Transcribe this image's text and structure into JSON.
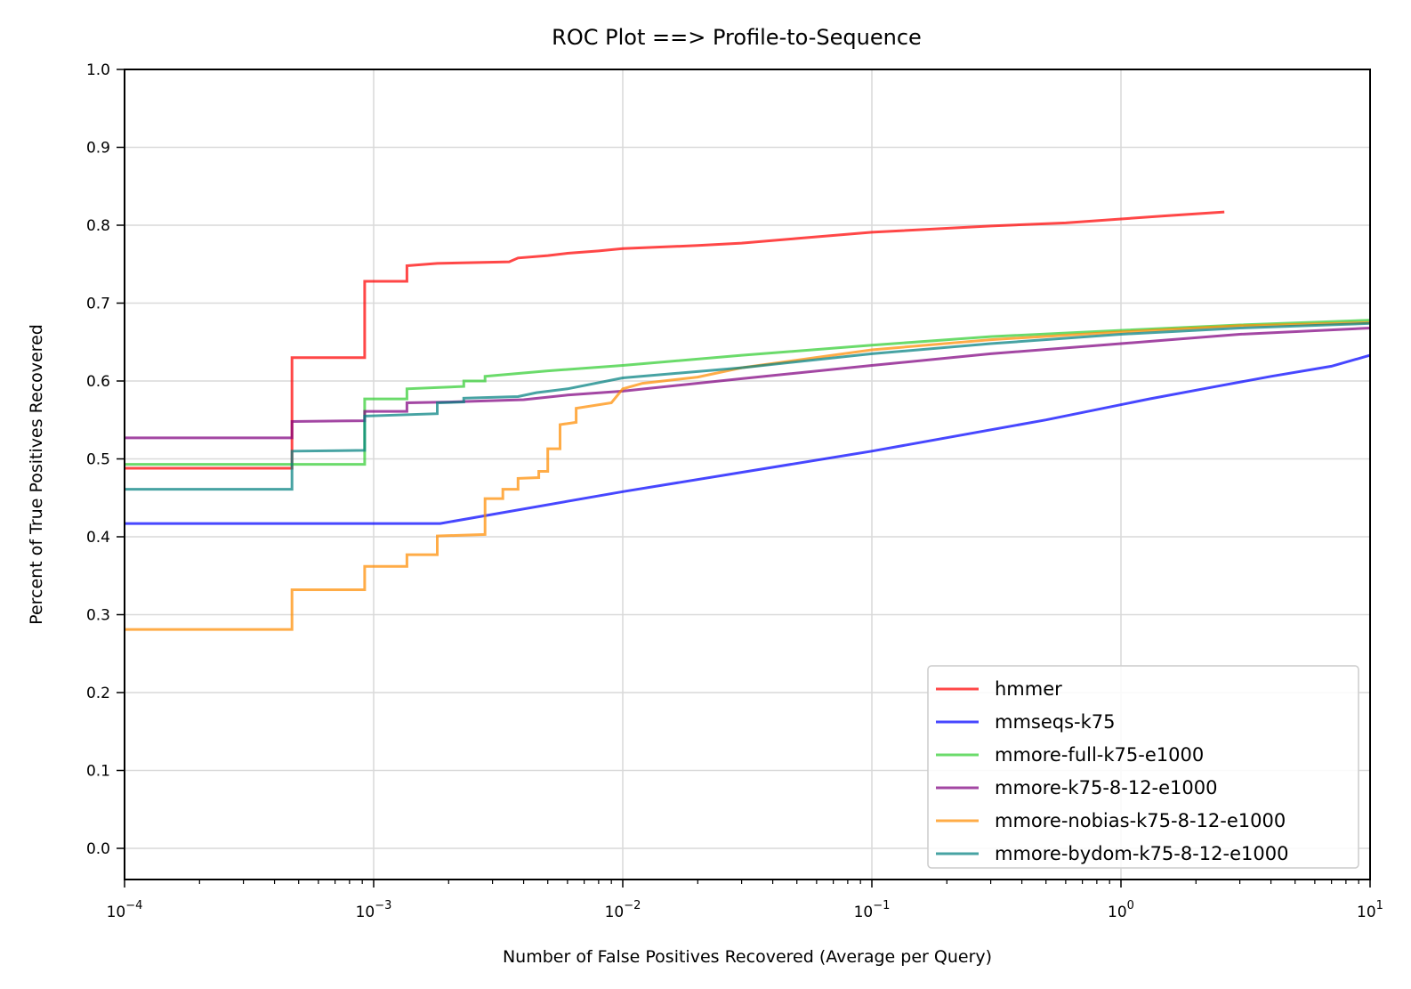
{
  "chart_data": {
    "type": "line",
    "title": "ROC Plot ==> Profile-to-Sequence",
    "xlabel": "Number of False Positives Recovered (Average per Query)",
    "ylabel": "Percent of True Positives Recovered",
    "xscale": "log",
    "xlim": [
      0.0001,
      10
    ],
    "ylim": [
      -0.04,
      1.0
    ],
    "x_ticks": [
      {
        "base": "10",
        "exp": "−4"
      },
      {
        "base": "10",
        "exp": "−3"
      },
      {
        "base": "10",
        "exp": "−2"
      },
      {
        "base": "10",
        "exp": "−1"
      },
      {
        "base": "10",
        "exp": "0"
      },
      {
        "base": "10",
        "exp": "1"
      }
    ],
    "y_ticks": [
      "0.0",
      "0.1",
      "0.2",
      "0.3",
      "0.4",
      "0.5",
      "0.6",
      "0.7",
      "0.8",
      "0.9",
      "1.0"
    ],
    "grid": true,
    "legend_position": "lower-right",
    "series": [
      {
        "name": "hmmer",
        "color": "#ff0000",
        "points": [
          [
            0.0001,
            0.488
          ],
          [
            0.00047,
            0.488
          ],
          [
            0.00047,
            0.63
          ],
          [
            0.00092,
            0.63
          ],
          [
            0.00092,
            0.728
          ],
          [
            0.00136,
            0.728
          ],
          [
            0.00136,
            0.748
          ],
          [
            0.0018,
            0.751
          ],
          [
            0.0035,
            0.753
          ],
          [
            0.0038,
            0.758
          ],
          [
            0.005,
            0.761
          ],
          [
            0.006,
            0.764
          ],
          [
            0.008,
            0.767
          ],
          [
            0.01,
            0.77
          ],
          [
            0.02,
            0.774
          ],
          [
            0.03,
            0.777
          ],
          [
            0.05,
            0.783
          ],
          [
            0.1,
            0.791
          ],
          [
            0.3,
            0.799
          ],
          [
            0.6,
            0.803
          ],
          [
            1.0,
            0.808
          ],
          [
            1.5,
            0.812
          ],
          [
            2.6,
            0.817
          ]
        ]
      },
      {
        "name": "mmseqs-k75",
        "color": "#0000ff",
        "points": [
          [
            0.0001,
            0.417
          ],
          [
            0.00185,
            0.417
          ],
          [
            0.01,
            0.458
          ],
          [
            0.1,
            0.51
          ],
          [
            0.5,
            0.55
          ],
          [
            1.3,
            0.577
          ],
          [
            2.5,
            0.594
          ],
          [
            4,
            0.606
          ],
          [
            7,
            0.619
          ],
          [
            10,
            0.633
          ]
        ]
      },
      {
        "name": "mmore-full-k75-e1000",
        "color": "#32cd32",
        "points": [
          [
            0.0001,
            0.493
          ],
          [
            0.00092,
            0.493
          ],
          [
            0.00092,
            0.577
          ],
          [
            0.00136,
            0.577
          ],
          [
            0.00136,
            0.59
          ],
          [
            0.0023,
            0.593
          ],
          [
            0.0023,
            0.6
          ],
          [
            0.0028,
            0.6
          ],
          [
            0.0028,
            0.606
          ],
          [
            0.005,
            0.613
          ],
          [
            0.01,
            0.62
          ],
          [
            0.03,
            0.633
          ],
          [
            0.1,
            0.646
          ],
          [
            0.3,
            0.657
          ],
          [
            1,
            0.665
          ],
          [
            3,
            0.672
          ],
          [
            10,
            0.678
          ]
        ]
      },
      {
        "name": "mmore-k75-8-12-e1000",
        "color": "#800080",
        "points": [
          [
            0.0001,
            0.527
          ],
          [
            0.00047,
            0.527
          ],
          [
            0.00047,
            0.548
          ],
          [
            0.00092,
            0.549
          ],
          [
            0.00092,
            0.561
          ],
          [
            0.00136,
            0.561
          ],
          [
            0.00136,
            0.572
          ],
          [
            0.002,
            0.573
          ],
          [
            0.004,
            0.576
          ],
          [
            0.006,
            0.582
          ],
          [
            0.01,
            0.587
          ],
          [
            0.03,
            0.603
          ],
          [
            0.1,
            0.62
          ],
          [
            0.3,
            0.635
          ],
          [
            1,
            0.648
          ],
          [
            3,
            0.66
          ],
          [
            10,
            0.668
          ]
        ]
      },
      {
        "name": "mmore-nobias-k75-8-12-e1000",
        "color": "#ff8c00",
        "points": [
          [
            0.0001,
            0.281
          ],
          [
            0.00047,
            0.281
          ],
          [
            0.00047,
            0.332
          ],
          [
            0.00092,
            0.332
          ],
          [
            0.00092,
            0.362
          ],
          [
            0.00136,
            0.362
          ],
          [
            0.00136,
            0.377
          ],
          [
            0.0018,
            0.377
          ],
          [
            0.0018,
            0.401
          ],
          [
            0.0028,
            0.403
          ],
          [
            0.0028,
            0.449
          ],
          [
            0.0033,
            0.449
          ],
          [
            0.0033,
            0.461
          ],
          [
            0.0038,
            0.461
          ],
          [
            0.0038,
            0.475
          ],
          [
            0.0046,
            0.476
          ],
          [
            0.0046,
            0.484
          ],
          [
            0.005,
            0.484
          ],
          [
            0.005,
            0.513
          ],
          [
            0.0056,
            0.513
          ],
          [
            0.0056,
            0.544
          ],
          [
            0.0065,
            0.547
          ],
          [
            0.0065,
            0.565
          ],
          [
            0.009,
            0.572
          ],
          [
            0.01,
            0.59
          ],
          [
            0.012,
            0.597
          ],
          [
            0.02,
            0.605
          ],
          [
            0.03,
            0.617
          ],
          [
            0.1,
            0.64
          ],
          [
            0.3,
            0.653
          ],
          [
            1,
            0.663
          ],
          [
            3,
            0.671
          ],
          [
            10,
            0.675
          ]
        ]
      },
      {
        "name": "mmore-bydom-k75-8-12-e1000",
        "color": "#008080",
        "points": [
          [
            0.0001,
            0.461
          ],
          [
            0.00047,
            0.461
          ],
          [
            0.00047,
            0.51
          ],
          [
            0.00092,
            0.511
          ],
          [
            0.00092,
            0.555
          ],
          [
            0.0018,
            0.558
          ],
          [
            0.0018,
            0.572
          ],
          [
            0.0023,
            0.573
          ],
          [
            0.0023,
            0.578
          ],
          [
            0.0038,
            0.58
          ],
          [
            0.0045,
            0.585
          ],
          [
            0.006,
            0.59
          ],
          [
            0.01,
            0.604
          ],
          [
            0.03,
            0.617
          ],
          [
            0.1,
            0.635
          ],
          [
            0.3,
            0.648
          ],
          [
            1,
            0.66
          ],
          [
            3,
            0.668
          ],
          [
            10,
            0.674
          ]
        ]
      }
    ]
  }
}
